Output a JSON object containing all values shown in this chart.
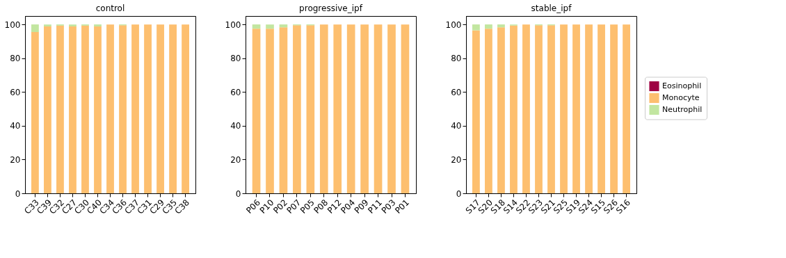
{
  "chart_data": [
    {
      "type": "bar",
      "stacked": true,
      "title": "control",
      "categories": [
        "C33",
        "C39",
        "C32",
        "C27",
        "C30",
        "C40",
        "C34",
        "C36",
        "C37",
        "C31",
        "C29",
        "C35",
        "C38"
      ],
      "ylim": [
        0,
        105
      ],
      "yticks": [
        0,
        20,
        40,
        60,
        80,
        100
      ],
      "grid": false,
      "series": [
        {
          "color": "#9e0142",
          "values": [
            0,
            0,
            0,
            0,
            0,
            0,
            0,
            0,
            0,
            0,
            0,
            0,
            0
          ]
        },
        {
          "color": "#fdbf6f",
          "values": [
            95.5,
            98.8,
            99.3,
            98.8,
            99.3,
            98.8,
            100,
            99.5,
            100,
            100,
            100,
            100,
            100
          ]
        },
        {
          "color": "#c2e6a0",
          "values": [
            4.5,
            1.2,
            0.7,
            1.2,
            0.7,
            1.2,
            0,
            0.5,
            0,
            0,
            0,
            0,
            0
          ]
        }
      ]
    },
    {
      "type": "bar",
      "stacked": true,
      "title": "progressive_ipf",
      "categories": [
        "P06",
        "P10",
        "P02",
        "P07",
        "P05",
        "P08",
        "P12",
        "P04",
        "P09",
        "P11",
        "P03",
        "P01"
      ],
      "ylim": [
        0,
        105
      ],
      "yticks": [
        0,
        20,
        40,
        60,
        80,
        100
      ],
      "grid": false,
      "series": [
        {
          "color": "#9e0142",
          "values": [
            0,
            0,
            0,
            0,
            0,
            0,
            0,
            0,
            0,
            0,
            0,
            0
          ]
        },
        {
          "color": "#fdbf6f",
          "values": [
            97.5,
            97.5,
            98.3,
            99.5,
            99.5,
            100,
            100,
            100,
            100,
            100,
            100,
            100
          ]
        },
        {
          "color": "#c2e6a0",
          "values": [
            2.5,
            2.5,
            1.7,
            0.5,
            0.5,
            0,
            0,
            0,
            0,
            0,
            0,
            0
          ]
        }
      ]
    },
    {
      "type": "bar",
      "stacked": true,
      "title": "stable_ipf",
      "categories": [
        "S17",
        "S20",
        "S18",
        "S14",
        "S22",
        "S23",
        "S21",
        "S25",
        "S19",
        "S24",
        "S15",
        "S26",
        "S16"
      ],
      "ylim": [
        0,
        105
      ],
      "yticks": [
        0,
        20,
        40,
        60,
        80,
        100
      ],
      "grid": false,
      "legend": "right",
      "series": [
        {
          "name": "Eosinophil",
          "color": "#9e0142",
          "values": [
            0,
            0,
            0,
            0,
            0,
            0,
            0,
            0,
            0,
            0,
            0,
            0,
            0
          ]
        },
        {
          "name": "Monocyte",
          "color": "#fdbf6f",
          "values": [
            96.5,
            97.5,
            98.3,
            99.3,
            100,
            99.5,
            99.5,
            100,
            100,
            100,
            100,
            100,
            100
          ]
        },
        {
          "name": "Neutrophil",
          "color": "#c2e6a0",
          "values": [
            3.5,
            2.5,
            1.7,
            0.7,
            0,
            0.5,
            0.5,
            0,
            0,
            0,
            0,
            0,
            0
          ]
        }
      ]
    }
  ]
}
